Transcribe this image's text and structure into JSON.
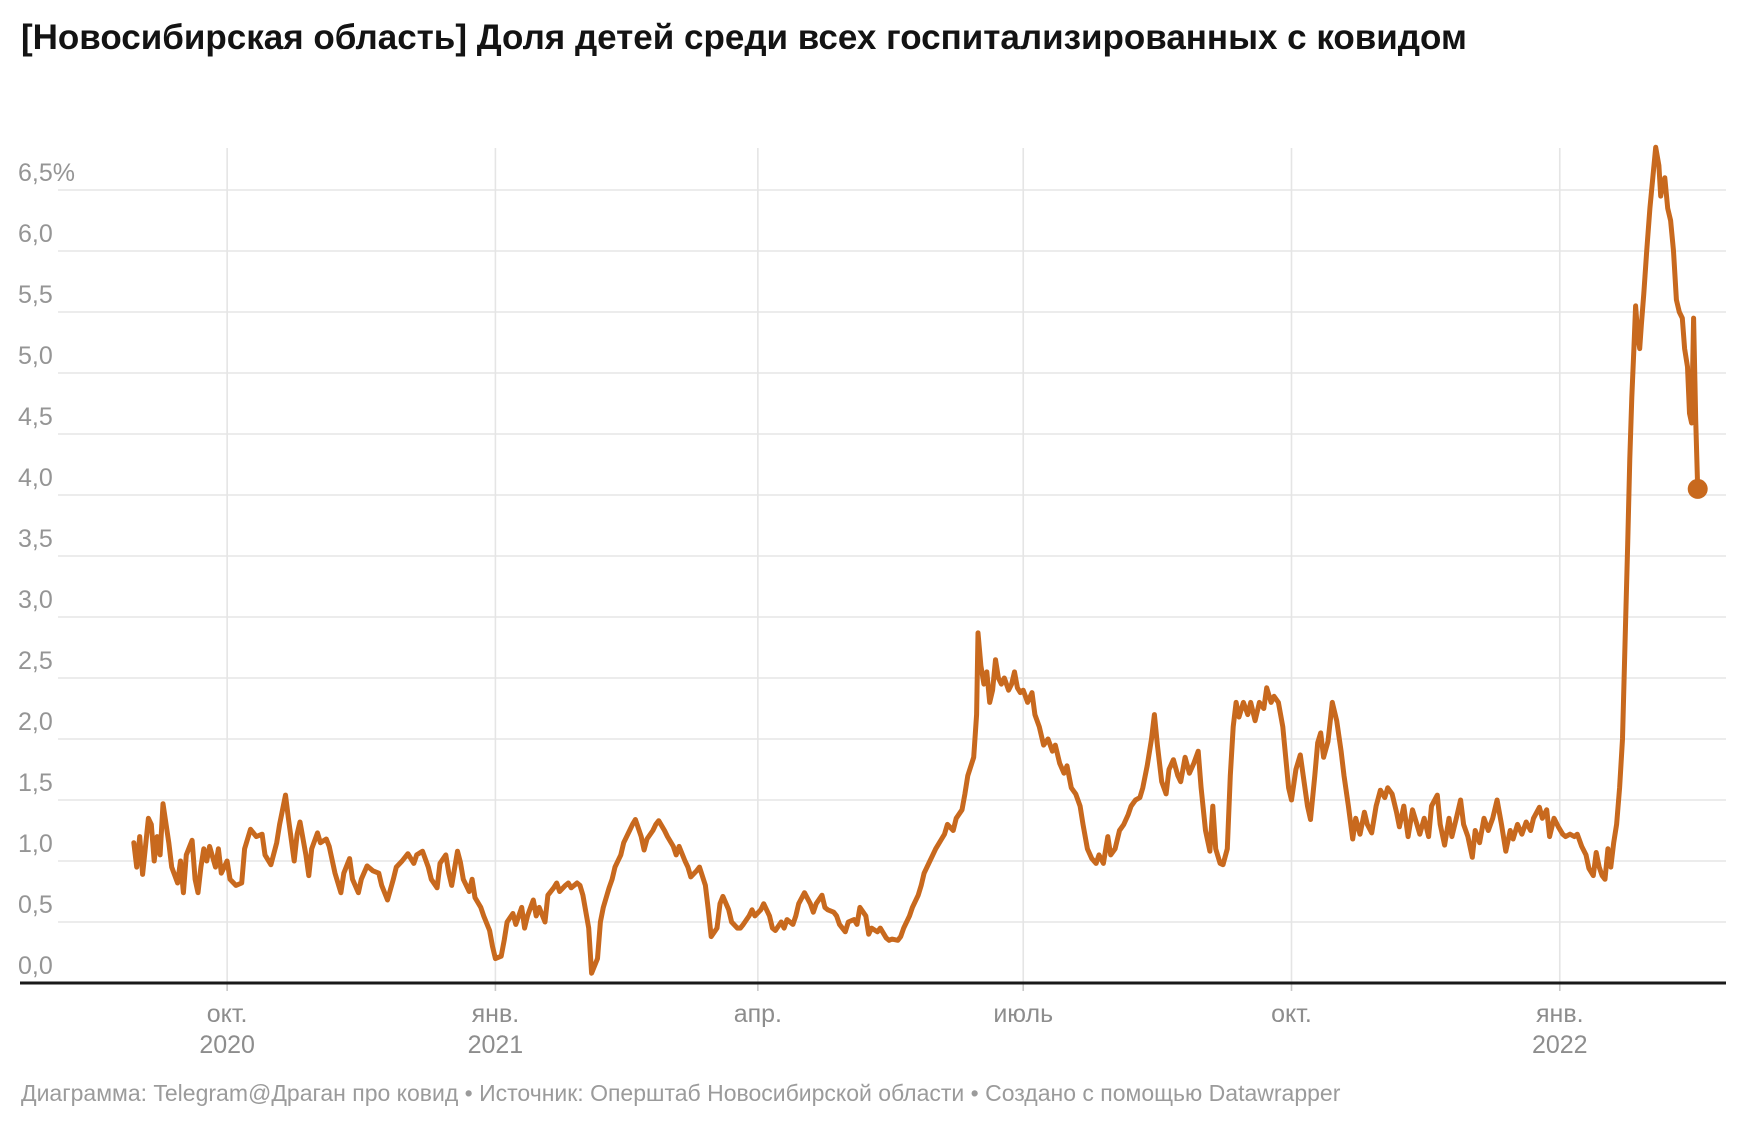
{
  "header": {
    "title": "[Новосибирская область] Доля детей среди всех госпитализированных с ковидом"
  },
  "footer": {
    "text": "Диаграмма: Telegram@Драган про ковид • Источник: Оперштаб Новосибирской области • Создано с помощью Datawrapper"
  },
  "chart_data": {
    "type": "line",
    "title": "[Новосибирская область] Доля детей среди всех госпитализированных с ковидом",
    "unit": "%",
    "decimal_separator": ",",
    "colors": {
      "line": "#C8691E",
      "grid": "#E5E5E5",
      "axis": "#1A1A1A",
      "tick_labels": "#959595"
    },
    "legend": "none",
    "grid": "on",
    "ylim": [
      0,
      6.9
    ],
    "y_ticks": [
      {
        "v": 0.0,
        "label": "0,0"
      },
      {
        "v": 0.5,
        "label": "0,5"
      },
      {
        "v": 1.0,
        "label": "1,0"
      },
      {
        "v": 1.5,
        "label": "1,5"
      },
      {
        "v": 2.0,
        "label": "2,0"
      },
      {
        "v": 2.5,
        "label": "2,5"
      },
      {
        "v": 3.0,
        "label": "3,0"
      },
      {
        "v": 3.5,
        "label": "3,5"
      },
      {
        "v": 4.0,
        "label": "4,0"
      },
      {
        "v": 4.5,
        "label": "4,5"
      },
      {
        "v": 5.0,
        "label": "5,0"
      },
      {
        "v": 5.5,
        "label": "5,5"
      },
      {
        "v": 6.0,
        "label": "6,0"
      },
      {
        "v": 6.5,
        "label": "6,5%"
      }
    ],
    "x_unit": "days from series start (late Aug 2020) to last point (mid Feb 2022)",
    "x_domain_days": [
      -26,
      546
    ],
    "x_ticks": [
      {
        "day": 32,
        "label": "окт.",
        "year": "2020"
      },
      {
        "day": 124,
        "label": "янв.",
        "year": "2021"
      },
      {
        "day": 214,
        "label": "апр."
      },
      {
        "day": 305,
        "label": "июль"
      },
      {
        "day": 397,
        "label": "окт."
      },
      {
        "day": 489,
        "label": "янв.",
        "year": "2022"
      }
    ],
    "last_value": 4.05,
    "max_value": 6.85,
    "points": [
      [
        0,
        1.15
      ],
      [
        1,
        0.95
      ],
      [
        2,
        1.2
      ],
      [
        3,
        0.89
      ],
      [
        5,
        1.35
      ],
      [
        6,
        1.3
      ],
      [
        7,
        1.0
      ],
      [
        8,
        1.2
      ],
      [
        9,
        1.05
      ],
      [
        10,
        1.47
      ],
      [
        12,
        1.15
      ],
      [
        13,
        0.95
      ],
      [
        15,
        0.82
      ],
      [
        16,
        1.0
      ],
      [
        17,
        0.74
      ],
      [
        18,
        1.05
      ],
      [
        20,
        1.17
      ],
      [
        21,
        0.85
      ],
      [
        22,
        0.74
      ],
      [
        23,
        0.95
      ],
      [
        24,
        1.1
      ],
      [
        25,
        1.0
      ],
      [
        26,
        1.12
      ],
      [
        28,
        0.95
      ],
      [
        29,
        1.1
      ],
      [
        30,
        0.9
      ],
      [
        32,
        1.0
      ],
      [
        33,
        0.85
      ],
      [
        35,
        0.8
      ],
      [
        37,
        0.82
      ],
      [
        38,
        1.1
      ],
      [
        40,
        1.26
      ],
      [
        42,
        1.2
      ],
      [
        44,
        1.22
      ],
      [
        45,
        1.05
      ],
      [
        47,
        0.97
      ],
      [
        49,
        1.15
      ],
      [
        50,
        1.3
      ],
      [
        52,
        1.54
      ],
      [
        53,
        1.35
      ],
      [
        55,
        1.0
      ],
      [
        56,
        1.22
      ],
      [
        57,
        1.32
      ],
      [
        59,
        1.05
      ],
      [
        60,
        0.88
      ],
      [
        61,
        1.1
      ],
      [
        63,
        1.23
      ],
      [
        64,
        1.15
      ],
      [
        66,
        1.18
      ],
      [
        67,
        1.12
      ],
      [
        69,
        0.9
      ],
      [
        71,
        0.74
      ],
      [
        72,
        0.9
      ],
      [
        74,
        1.02
      ],
      [
        75,
        0.85
      ],
      [
        77,
        0.74
      ],
      [
        78,
        0.85
      ],
      [
        80,
        0.96
      ],
      [
        82,
        0.92
      ],
      [
        84,
        0.9
      ],
      [
        85,
        0.8
      ],
      [
        87,
        0.68
      ],
      [
        89,
        0.85
      ],
      [
        90,
        0.95
      ],
      [
        92,
        1.0
      ],
      [
        94,
        1.06
      ],
      [
        96,
        0.98
      ],
      [
        97,
        1.05
      ],
      [
        99,
        1.08
      ],
      [
        101,
        0.95
      ],
      [
        102,
        0.85
      ],
      [
        104,
        0.78
      ],
      [
        105,
        0.98
      ],
      [
        107,
        1.05
      ],
      [
        108,
        0.9
      ],
      [
        109,
        0.8
      ],
      [
        111,
        1.08
      ],
      [
        112,
        0.99
      ],
      [
        113,
        0.85
      ],
      [
        115,
        0.75
      ],
      [
        116,
        0.85
      ],
      [
        117,
        0.7
      ],
      [
        119,
        0.62
      ],
      [
        120,
        0.55
      ],
      [
        122,
        0.43
      ],
      [
        123,
        0.3
      ],
      [
        124,
        0.2
      ],
      [
        126,
        0.22
      ],
      [
        127,
        0.35
      ],
      [
        128,
        0.5
      ],
      [
        130,
        0.57
      ],
      [
        131,
        0.48
      ],
      [
        133,
        0.62
      ],
      [
        134,
        0.45
      ],
      [
        135,
        0.55
      ],
      [
        137,
        0.68
      ],
      [
        138,
        0.55
      ],
      [
        139,
        0.62
      ],
      [
        141,
        0.5
      ],
      [
        142,
        0.72
      ],
      [
        144,
        0.78
      ],
      [
        145,
        0.82
      ],
      [
        146,
        0.75
      ],
      [
        148,
        0.8
      ],
      [
        149,
        0.82
      ],
      [
        150,
        0.78
      ],
      [
        152,
        0.82
      ],
      [
        153,
        0.8
      ],
      [
        154,
        0.72
      ],
      [
        156,
        0.45
      ],
      [
        157,
        0.08
      ],
      [
        159,
        0.2
      ],
      [
        160,
        0.5
      ],
      [
        161,
        0.62
      ],
      [
        163,
        0.78
      ],
      [
        164,
        0.85
      ],
      [
        165,
        0.95
      ],
      [
        167,
        1.05
      ],
      [
        168,
        1.15
      ],
      [
        170,
        1.25
      ],
      [
        171,
        1.3
      ],
      [
        172,
        1.34
      ],
      [
        174,
        1.2
      ],
      [
        175,
        1.09
      ],
      [
        176,
        1.18
      ],
      [
        178,
        1.25
      ],
      [
        179,
        1.3
      ],
      [
        180,
        1.33
      ],
      [
        182,
        1.25
      ],
      [
        183,
        1.2
      ],
      [
        185,
        1.12
      ],
      [
        186,
        1.05
      ],
      [
        187,
        1.12
      ],
      [
        189,
        1.0
      ],
      [
        190,
        0.95
      ],
      [
        191,
        0.87
      ],
      [
        193,
        0.92
      ],
      [
        194,
        0.95
      ],
      [
        196,
        0.8
      ],
      [
        197,
        0.6
      ],
      [
        198,
        0.38
      ],
      [
        200,
        0.45
      ],
      [
        201,
        0.65
      ],
      [
        202,
        0.71
      ],
      [
        204,
        0.6
      ],
      [
        205,
        0.5
      ],
      [
        207,
        0.45
      ],
      [
        208,
        0.45
      ],
      [
        209,
        0.48
      ],
      [
        211,
        0.55
      ],
      [
        212,
        0.6
      ],
      [
        213,
        0.55
      ],
      [
        215,
        0.6
      ],
      [
        216,
        0.65
      ],
      [
        218,
        0.55
      ],
      [
        219,
        0.45
      ],
      [
        220,
        0.43
      ],
      [
        222,
        0.5
      ],
      [
        223,
        0.45
      ],
      [
        224,
        0.52
      ],
      [
        226,
        0.48
      ],
      [
        227,
        0.55
      ],
      [
        228,
        0.65
      ],
      [
        230,
        0.74
      ],
      [
        232,
        0.65
      ],
      [
        233,
        0.58
      ],
      [
        234,
        0.65
      ],
      [
        236,
        0.72
      ],
      [
        237,
        0.62
      ],
      [
        238,
        0.6
      ],
      [
        240,
        0.58
      ],
      [
        241,
        0.55
      ],
      [
        242,
        0.48
      ],
      [
        244,
        0.42
      ],
      [
        245,
        0.5
      ],
      [
        247,
        0.52
      ],
      [
        248,
        0.48
      ],
      [
        249,
        0.62
      ],
      [
        251,
        0.55
      ],
      [
        252,
        0.4
      ],
      [
        253,
        0.45
      ],
      [
        255,
        0.42
      ],
      [
        256,
        0.45
      ],
      [
        258,
        0.37
      ],
      [
        259,
        0.35
      ],
      [
        260,
        0.36
      ],
      [
        262,
        0.35
      ],
      [
        263,
        0.38
      ],
      [
        264,
        0.45
      ],
      [
        266,
        0.55
      ],
      [
        267,
        0.62
      ],
      [
        269,
        0.72
      ],
      [
        270,
        0.8
      ],
      [
        271,
        0.9
      ],
      [
        273,
        1.0
      ],
      [
        274,
        1.05
      ],
      [
        275,
        1.1
      ],
      [
        277,
        1.18
      ],
      [
        278,
        1.22
      ],
      [
        279,
        1.3
      ],
      [
        281,
        1.25
      ],
      [
        282,
        1.35
      ],
      [
        284,
        1.42
      ],
      [
        285,
        1.55
      ],
      [
        286,
        1.7
      ],
      [
        288,
        1.85
      ],
      [
        289,
        2.2
      ],
      [
        289.5,
        2.87
      ],
      [
        290.5,
        2.6
      ],
      [
        291.5,
        2.45
      ],
      [
        292.5,
        2.55
      ],
      [
        293.5,
        2.3
      ],
      [
        294.5,
        2.4
      ],
      [
        295.5,
        2.65
      ],
      [
        296.5,
        2.5
      ],
      [
        297.5,
        2.45
      ],
      [
        298.5,
        2.5
      ],
      [
        300,
        2.4
      ],
      [
        301,
        2.45
      ],
      [
        302,
        2.55
      ],
      [
        303,
        2.42
      ],
      [
        304,
        2.38
      ],
      [
        305,
        2.4
      ],
      [
        306.5,
        2.3
      ],
      [
        308,
        2.38
      ],
      [
        309,
        2.2
      ],
      [
        310.5,
        2.1
      ],
      [
        312,
        1.95
      ],
      [
        313.5,
        2.0
      ],
      [
        315,
        1.9
      ],
      [
        316,
        1.95
      ],
      [
        317.5,
        1.8
      ],
      [
        319,
        1.72
      ],
      [
        320,
        1.78
      ],
      [
        321.5,
        1.6
      ],
      [
        323,
        1.55
      ],
      [
        324.5,
        1.45
      ],
      [
        325.5,
        1.3
      ],
      [
        327,
        1.1
      ],
      [
        328.5,
        1.02
      ],
      [
        330,
        0.98
      ],
      [
        331,
        1.05
      ],
      [
        332.5,
        0.98
      ],
      [
        334,
        1.2
      ],
      [
        335,
        1.05
      ],
      [
        336.5,
        1.1
      ],
      [
        338,
        1.25
      ],
      [
        339.5,
        1.3
      ],
      [
        341,
        1.38
      ],
      [
        342,
        1.45
      ],
      [
        343.5,
        1.5
      ],
      [
        345,
        1.52
      ],
      [
        346,
        1.6
      ],
      [
        347.5,
        1.78
      ],
      [
        349,
        2.0
      ],
      [
        350,
        2.2
      ],
      [
        351,
        1.95
      ],
      [
        352.5,
        1.65
      ],
      [
        354,
        1.55
      ],
      [
        355,
        1.75
      ],
      [
        356.5,
        1.83
      ],
      [
        358,
        1.7
      ],
      [
        359,
        1.65
      ],
      [
        360.5,
        1.85
      ],
      [
        362,
        1.72
      ],
      [
        363.5,
        1.8
      ],
      [
        365,
        1.9
      ],
      [
        366,
        1.6
      ],
      [
        367.5,
        1.25
      ],
      [
        369,
        1.08
      ],
      [
        370,
        1.45
      ],
      [
        371,
        1.1
      ],
      [
        372.5,
        0.98
      ],
      [
        373.5,
        0.97
      ],
      [
        375,
        1.1
      ],
      [
        376,
        1.7
      ],
      [
        377,
        2.1
      ],
      [
        378,
        2.3
      ],
      [
        379,
        2.18
      ],
      [
        380.5,
        2.3
      ],
      [
        382,
        2.2
      ],
      [
        383,
        2.3
      ],
      [
        384.5,
        2.15
      ],
      [
        386,
        2.3
      ],
      [
        387.5,
        2.25
      ],
      [
        388.5,
        2.42
      ],
      [
        390,
        2.3
      ],
      [
        391,
        2.35
      ],
      [
        392.5,
        2.3
      ],
      [
        394,
        2.1
      ],
      [
        395,
        1.85
      ],
      [
        396,
        1.6
      ],
      [
        397,
        1.5
      ],
      [
        398.5,
        1.75
      ],
      [
        400,
        1.87
      ],
      [
        401,
        1.7
      ],
      [
        402.5,
        1.45
      ],
      [
        403.5,
        1.34
      ],
      [
        405,
        1.7
      ],
      [
        406,
        1.97
      ],
      [
        407,
        2.05
      ],
      [
        408,
        1.85
      ],
      [
        409.5,
        1.98
      ],
      [
        411,
        2.3
      ],
      [
        412.5,
        2.15
      ],
      [
        414,
        1.9
      ],
      [
        415,
        1.7
      ],
      [
        416.5,
        1.45
      ],
      [
        418,
        1.18
      ],
      [
        419,
        1.35
      ],
      [
        420.5,
        1.22
      ],
      [
        422,
        1.4
      ],
      [
        423,
        1.3
      ],
      [
        424.5,
        1.23
      ],
      [
        426,
        1.45
      ],
      [
        427.5,
        1.58
      ],
      [
        429,
        1.52
      ],
      [
        430,
        1.6
      ],
      [
        431.5,
        1.55
      ],
      [
        433,
        1.4
      ],
      [
        434,
        1.28
      ],
      [
        435.5,
        1.45
      ],
      [
        437,
        1.2
      ],
      [
        438.5,
        1.42
      ],
      [
        440,
        1.3
      ],
      [
        441,
        1.22
      ],
      [
        442.5,
        1.35
      ],
      [
        444,
        1.2
      ],
      [
        445,
        1.45
      ],
      [
        447,
        1.54
      ],
      [
        448,
        1.3
      ],
      [
        449.5,
        1.13
      ],
      [
        451,
        1.35
      ],
      [
        452,
        1.2
      ],
      [
        453.5,
        1.35
      ],
      [
        455,
        1.5
      ],
      [
        456,
        1.3
      ],
      [
        457.5,
        1.2
      ],
      [
        459,
        1.03
      ],
      [
        460,
        1.25
      ],
      [
        461.5,
        1.15
      ],
      [
        463,
        1.35
      ],
      [
        464.5,
        1.25
      ],
      [
        466,
        1.35
      ],
      [
        467.5,
        1.5
      ],
      [
        469,
        1.3
      ],
      [
        470.5,
        1.08
      ],
      [
        472,
        1.25
      ],
      [
        473,
        1.18
      ],
      [
        474.5,
        1.3
      ],
      [
        476,
        1.22
      ],
      [
        477.5,
        1.32
      ],
      [
        479,
        1.25
      ],
      [
        480,
        1.35
      ],
      [
        482,
        1.44
      ],
      [
        483,
        1.35
      ],
      [
        484.5,
        1.42
      ],
      [
        485.5,
        1.2
      ],
      [
        487,
        1.35
      ],
      [
        488.5,
        1.28
      ],
      [
        490,
        1.22
      ],
      [
        491,
        1.2
      ],
      [
        492.5,
        1.22
      ],
      [
        494,
        1.2
      ],
      [
        495,
        1.22
      ],
      [
        496.5,
        1.12
      ],
      [
        498,
        1.05
      ],
      [
        499,
        0.94
      ],
      [
        500.5,
        0.88
      ],
      [
        501.5,
        1.07
      ],
      [
        502.5,
        0.95
      ],
      [
        503.5,
        0.88
      ],
      [
        504.5,
        0.85
      ],
      [
        505.5,
        1.1
      ],
      [
        506.5,
        0.95
      ],
      [
        507.5,
        1.15
      ],
      [
        508.5,
        1.3
      ],
      [
        509.5,
        1.6
      ],
      [
        510.5,
        2.0
      ],
      [
        511.5,
        2.9
      ],
      [
        512.3,
        3.6
      ],
      [
        513,
        4.3
      ],
      [
        513.7,
        4.8
      ],
      [
        514.4,
        5.2
      ],
      [
        515,
        5.55
      ],
      [
        515.8,
        5.3
      ],
      [
        516.4,
        5.2
      ],
      [
        517,
        5.4
      ],
      [
        517.8,
        5.65
      ],
      [
        518.8,
        6.0
      ],
      [
        519.9,
        6.35
      ],
      [
        520.9,
        6.6
      ],
      [
        521.9,
        6.85
      ],
      [
        523,
        6.7
      ],
      [
        523.6,
        6.45
      ],
      [
        524.3,
        6.55
      ],
      [
        525,
        6.6
      ],
      [
        526,
        6.35
      ],
      [
        527,
        6.25
      ],
      [
        528,
        6.0
      ],
      [
        529,
        5.6
      ],
      [
        530,
        5.5
      ],
      [
        531,
        5.45
      ],
      [
        531.8,
        5.2
      ],
      [
        532.8,
        5.05
      ],
      [
        533.5,
        4.67
      ],
      [
        534.2,
        4.59
      ],
      [
        534.9,
        5.45
      ],
      [
        535.6,
        4.62
      ],
      [
        536.3,
        4.05
      ]
    ]
  }
}
